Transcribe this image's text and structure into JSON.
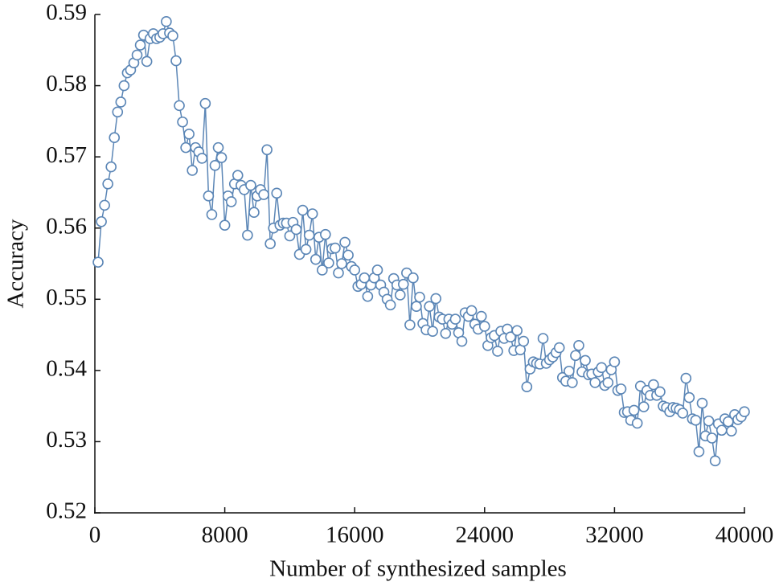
{
  "chart_data": {
    "type": "line",
    "xlabel": "Number of synthesized samples",
    "ylabel": "Accuracy",
    "xlim": [
      0,
      40000
    ],
    "xticks": [
      0,
      8000,
      16000,
      24000,
      32000,
      40000
    ],
    "ylim": [
      0.52,
      0.59
    ],
    "yticks": [
      0.52,
      0.53,
      0.54,
      0.55,
      0.56,
      0.57,
      0.58,
      0.59
    ],
    "grid": false,
    "x": [
      200,
      400,
      600,
      800,
      1000,
      1200,
      1400,
      1600,
      1800,
      2000,
      2200,
      2400,
      2600,
      2800,
      3000,
      3200,
      3400,
      3600,
      3800,
      4000,
      4200,
      4400,
      4600,
      4800,
      5000,
      5200,
      5400,
      5600,
      5800,
      6000,
      6200,
      6400,
      6600,
      6800,
      7000,
      7200,
      7400,
      7600,
      7800,
      8000,
      8200,
      8400,
      8600,
      8800,
      9000,
      9200,
      9400,
      9600,
      9800,
      10000,
      10200,
      10400,
      10600,
      10800,
      11000,
      11200,
      11400,
      11600,
      11800,
      12000,
      12200,
      12400,
      12600,
      12800,
      13000,
      13200,
      13400,
      13600,
      13800,
      14000,
      14200,
      14400,
      14600,
      14800,
      15000,
      15200,
      15400,
      15600,
      15800,
      16000,
      16200,
      16400,
      16600,
      16800,
      17000,
      17200,
      17400,
      17600,
      17800,
      18000,
      18200,
      18400,
      18600,
      18800,
      19000,
      19200,
      19400,
      19600,
      19800,
      20000,
      20200,
      20400,
      20600,
      20800,
      21000,
      21200,
      21400,
      21600,
      21800,
      22000,
      22200,
      22400,
      22600,
      22800,
      23000,
      23200,
      23400,
      23600,
      23800,
      24000,
      24200,
      24400,
      24600,
      24800,
      25000,
      25200,
      25400,
      25600,
      25800,
      26000,
      26200,
      26400,
      26600,
      26800,
      27000,
      27200,
      27400,
      27600,
      27800,
      28000,
      28200,
      28400,
      28600,
      28800,
      29000,
      29200,
      29400,
      29600,
      29800,
      30000,
      30200,
      30400,
      30600,
      30800,
      31000,
      31200,
      31400,
      31600,
      31800,
      32000,
      32200,
      32400,
      32600,
      32800,
      33000,
      33200,
      33400,
      33600,
      33800,
      34000,
      34200,
      34400,
      34600,
      34800,
      35000,
      35200,
      35400,
      35600,
      35800,
      36000,
      36200,
      36400,
      36600,
      36800,
      37000,
      37200,
      37400,
      37600,
      37800,
      38000,
      38200,
      38400,
      38600,
      38800,
      39000,
      39200,
      39400,
      39600,
      39800,
      40000
    ],
    "series": [
      {
        "color": "#5b86b6",
        "values": [
          0.5552,
          0.5609,
          0.5632,
          0.5662,
          0.5686,
          0.5727,
          0.5763,
          0.5777,
          0.58,
          0.5818,
          0.5822,
          0.5832,
          0.5843,
          0.5857,
          0.5871,
          0.5834,
          0.5866,
          0.5873,
          0.5866,
          0.5868,
          0.5873,
          0.589,
          0.5874,
          0.587,
          0.5835,
          0.5772,
          0.5749,
          0.5713,
          0.5732,
          0.5681,
          0.5713,
          0.5707,
          0.5698,
          0.5775,
          0.5645,
          0.5619,
          0.5688,
          0.5713,
          0.5699,
          0.5604,
          0.5645,
          0.5637,
          0.5662,
          0.5674,
          0.566,
          0.5654,
          0.559,
          0.566,
          0.5622,
          0.5645,
          0.5654,
          0.5647,
          0.571,
          0.5578,
          0.56,
          0.5649,
          0.5604,
          0.5607,
          0.5607,
          0.5589,
          0.5608,
          0.5598,
          0.5563,
          0.5625,
          0.557,
          0.559,
          0.562,
          0.5556,
          0.5587,
          0.5541,
          0.5591,
          0.5551,
          0.5571,
          0.5572,
          0.5537,
          0.555,
          0.558,
          0.5562,
          0.5546,
          0.5541,
          0.5518,
          0.5521,
          0.553,
          0.5504,
          0.552,
          0.553,
          0.5541,
          0.552,
          0.551,
          0.55,
          0.5492,
          0.5529,
          0.552,
          0.5506,
          0.5521,
          0.5537,
          0.5464,
          0.553,
          0.549,
          0.5503,
          0.5466,
          0.5457,
          0.549,
          0.5455,
          0.5501,
          0.5475,
          0.5472,
          0.5452,
          0.5472,
          0.5465,
          0.5472,
          0.5453,
          0.5441,
          0.5481,
          0.5476,
          0.5484,
          0.5465,
          0.5458,
          0.5476,
          0.5462,
          0.5435,
          0.5446,
          0.5449,
          0.5427,
          0.5455,
          0.5445,
          0.5458,
          0.5447,
          0.5428,
          0.5456,
          0.5429,
          0.5441,
          0.5377,
          0.5402,
          0.5412,
          0.541,
          0.5409,
          0.5445,
          0.541,
          0.5415,
          0.5419,
          0.5425,
          0.5432,
          0.539,
          0.5385,
          0.5399,
          0.5383,
          0.5421,
          0.5435,
          0.5398,
          0.5414,
          0.5394,
          0.5395,
          0.5383,
          0.5398,
          0.5404,
          0.5379,
          0.5383,
          0.5401,
          0.5412,
          0.5372,
          0.5374,
          0.5341,
          0.5342,
          0.533,
          0.5344,
          0.5326,
          0.5378,
          0.5349,
          0.5372,
          0.5365,
          0.538,
          0.5365,
          0.537,
          0.535,
          0.5348,
          0.5342,
          0.5348,
          0.5347,
          0.5345,
          0.534,
          0.5389,
          0.5362,
          0.5332,
          0.533,
          0.5286,
          0.5354,
          0.5308,
          0.5329,
          0.5305,
          0.5273,
          0.5325,
          0.5316,
          0.5332,
          0.5328,
          0.5315,
          0.5338,
          0.5331,
          0.5335,
          0.5342
        ]
      }
    ]
  }
}
